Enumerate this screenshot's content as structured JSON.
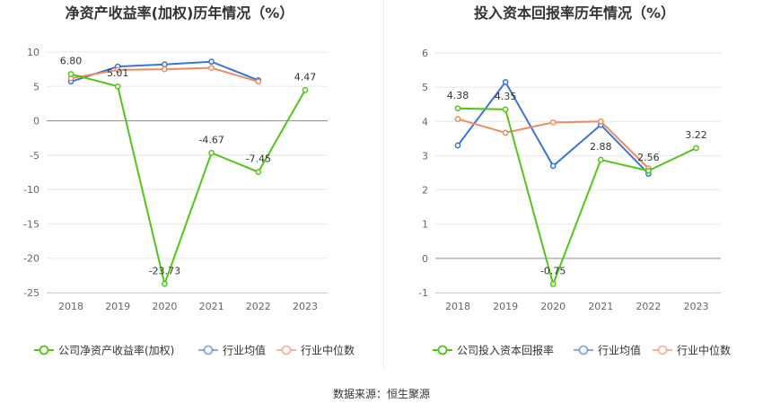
{
  "source_label": "数据来源：恒生聚源",
  "colors": {
    "company": "#52c41a",
    "industry_avg": "#3a74d8",
    "industry_median": "#f08a5d",
    "axis_text": "#666666",
    "title": "#333333"
  },
  "chart_data": [
    {
      "type": "line",
      "title": "净资产收益率(加权)历年情况（%）",
      "xlabel": "",
      "ylabel": "",
      "categories": [
        "2018",
        "2019",
        "2020",
        "2021",
        "2022",
        "2023"
      ],
      "y_ticks": [
        10,
        5,
        0,
        -5,
        -10,
        -15,
        -20,
        -25
      ],
      "ylim": [
        -25,
        10
      ],
      "grid": true,
      "legend_position": "bottom",
      "series": [
        {
          "name": "公司净资产收益率(加权)",
          "color_key": "company",
          "labels": true,
          "values": [
            6.8,
            5.01,
            -23.73,
            -4.67,
            -7.45,
            4.47
          ],
          "value_labels": [
            "6.80",
            "5.01",
            "-23.73",
            "-4.67",
            "-7.45",
            "4.47"
          ]
        },
        {
          "name": "行业均值",
          "color_key": "industry_avg",
          "labels": false,
          "values": [
            5.7,
            7.9,
            8.2,
            8.6,
            5.9,
            null
          ]
        },
        {
          "name": "行业中位数",
          "color_key": "industry_median",
          "labels": false,
          "values": [
            6.2,
            7.4,
            7.5,
            7.7,
            5.7,
            null
          ]
        }
      ]
    },
    {
      "type": "line",
      "title": "投入资本回报率历年情况（%）",
      "xlabel": "",
      "ylabel": "",
      "categories": [
        "2018",
        "2019",
        "2020",
        "2021",
        "2022",
        "2023"
      ],
      "y_ticks": [
        6,
        5,
        4,
        3,
        2,
        1,
        0,
        -1
      ],
      "ylim": [
        -1,
        6
      ],
      "grid": true,
      "legend_position": "bottom",
      "series": [
        {
          "name": "公司投入资本回报率",
          "color_key": "company",
          "labels": true,
          "values": [
            4.38,
            4.35,
            -0.75,
            2.88,
            2.56,
            3.22
          ],
          "value_labels": [
            "4.38",
            "4.35",
            "-0.75",
            "2.88",
            "2.56",
            "3.22"
          ]
        },
        {
          "name": "行业均值",
          "color_key": "industry_avg",
          "labels": false,
          "values": [
            3.3,
            5.15,
            2.7,
            3.9,
            2.47,
            null
          ]
        },
        {
          "name": "行业中位数",
          "color_key": "industry_median",
          "labels": false,
          "values": [
            4.07,
            3.67,
            3.97,
            4.0,
            2.63,
            null
          ]
        }
      ]
    }
  ]
}
